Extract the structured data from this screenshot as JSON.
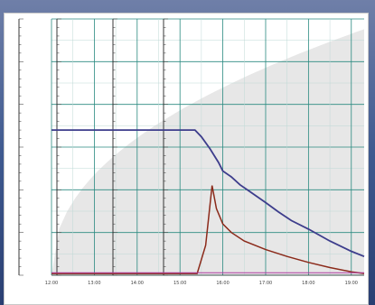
{
  "chart_data": {
    "type": "line",
    "title": "",
    "xlabel": "",
    "ylabel": "",
    "grid": true,
    "legend": "none",
    "colors": {
      "series_1": "#3d3d8c",
      "series_2": "#8b2a1a",
      "series_3": "#b03aa0",
      "background_area": "#e7e7e7",
      "grid_major": "#2a8a80"
    },
    "x_tick_labels": [
      "12:00",
      "13:00",
      "14:00",
      "15:00",
      "16:00",
      "17:00",
      "18:00",
      "19:00"
    ],
    "ylim": [
      0,
      300
    ],
    "series": [
      {
        "values": [
          [
            0,
            170
          ],
          [
            1,
            170
          ],
          [
            2,
            170
          ],
          [
            3,
            170
          ],
          [
            3.35,
            170
          ],
          [
            3.5,
            162
          ],
          [
            3.7,
            148
          ],
          [
            3.9,
            132
          ],
          [
            4.0,
            122
          ],
          [
            4.2,
            115
          ],
          [
            4.4,
            106
          ],
          [
            4.6,
            99
          ],
          [
            4.8,
            92
          ],
          [
            5.0,
            85
          ],
          [
            5.3,
            74
          ],
          [
            5.6,
            64
          ],
          [
            6.0,
            54
          ],
          [
            6.5,
            40
          ],
          [
            7.0,
            28
          ],
          [
            7.3,
            22
          ]
        ]
      },
      {
        "values": [
          [
            0,
            2
          ],
          [
            3.4,
            2
          ],
          [
            3.6,
            35
          ],
          [
            3.75,
            105
          ],
          [
            3.85,
            78
          ],
          [
            4.0,
            60
          ],
          [
            4.2,
            50
          ],
          [
            4.5,
            40
          ],
          [
            5.0,
            30
          ],
          [
            5.5,
            22
          ],
          [
            6.0,
            15
          ],
          [
            6.5,
            9
          ],
          [
            7.0,
            4
          ],
          [
            7.3,
            2
          ]
        ]
      },
      {
        "values": [
          [
            0,
            3
          ],
          [
            7.3,
            3
          ]
        ]
      }
    ]
  }
}
